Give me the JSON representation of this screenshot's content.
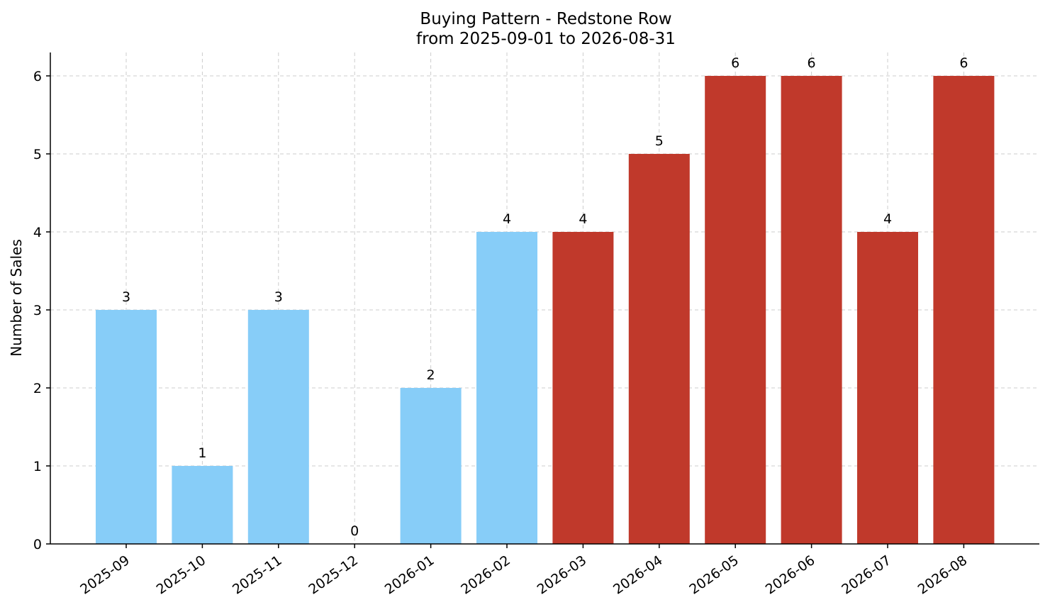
{
  "chart_data": {
    "type": "bar",
    "title": "Buying Pattern - Redstone Row",
    "subtitle": "from 2025-09-01 to 2026-08-31",
    "ylabel": "Number of Sales",
    "xlabel": "",
    "categories": [
      "2025-09",
      "2025-10",
      "2025-11",
      "2025-12",
      "2026-01",
      "2026-02",
      "2026-03",
      "2026-04",
      "2026-05",
      "2026-06",
      "2026-07",
      "2026-08"
    ],
    "values": [
      3,
      1,
      3,
      0,
      2,
      4,
      4,
      5,
      6,
      6,
      4,
      6
    ],
    "bar_colors": [
      "#87cdf8",
      "#87cdf8",
      "#87cdf8",
      "#87cdf8",
      "#87cdf8",
      "#87cdf8",
      "#c0392b",
      "#c0392b",
      "#c0392b",
      "#c0392b",
      "#c0392b",
      "#c0392b"
    ],
    "ylim": [
      0,
      6.3
    ],
    "yticks": [
      0,
      1,
      2,
      3,
      4,
      5,
      6
    ],
    "grid": true,
    "data_labels": true
  }
}
